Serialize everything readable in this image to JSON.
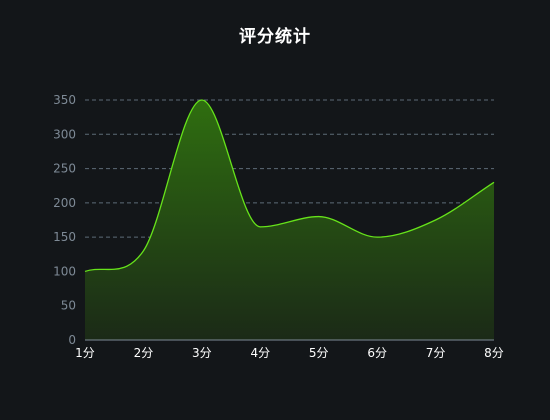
{
  "colors": {
    "background": "#131619",
    "line": "#66e31a",
    "fill_top": "#2f6e10",
    "fill_bottom": "#1b2a17",
    "grid": "#5d6b77",
    "axis": "#7e8a96",
    "title": "#ffffff"
  },
  "chart_data": {
    "type": "area",
    "title": "评分统计",
    "xlabel": "",
    "ylabel": "",
    "categories": [
      "1分",
      "2分",
      "3分",
      "4分",
      "5分",
      "6分",
      "7分",
      "8分"
    ],
    "values": [
      100,
      130,
      350,
      165,
      180,
      150,
      175,
      230
    ],
    "y_ticks": [
      0,
      50,
      100,
      150,
      200,
      250,
      300,
      350
    ],
    "ylim": [
      0,
      350
    ],
    "smooth": true,
    "grid": "horizontal dashed"
  }
}
